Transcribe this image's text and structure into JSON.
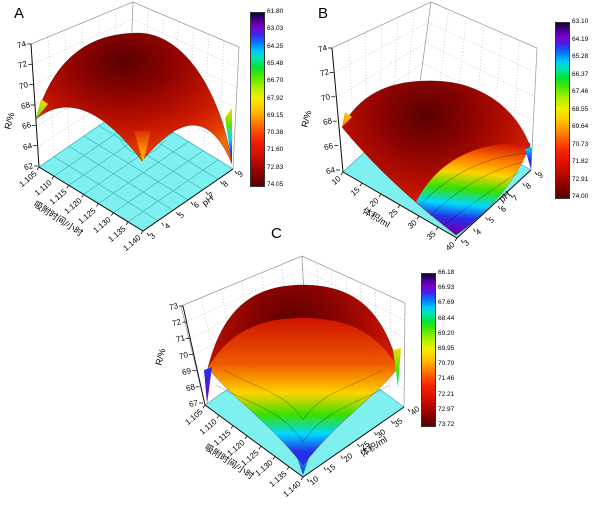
{
  "style": {
    "background": "#ffffff",
    "floor_color": "#7ff0f0",
    "surface_peak_color": "#5a0000",
    "surface_body_color": "#c41200",
    "colormap_top_to_bottom": [
      "#150030",
      "#7a00cc",
      "#2233ee",
      "#00c8ff",
      "#00e33c",
      "#9cf000",
      "#f2ef00",
      "#ffc400",
      "#ff8a00",
      "#f32000",
      "#5c0000"
    ]
  },
  "chart_data": [
    {
      "type": "surface",
      "panel": "A",
      "xlabel": "吸附时间/小时",
      "x_ticks": [
        "1.105",
        "1.110",
        "1.115",
        "1.120",
        "1.125",
        "1.130",
        "1.135",
        "1.140"
      ],
      "ylabel": "pH",
      "y_ticks": [
        "3",
        "4",
        "5",
        "6",
        "7",
        "8",
        "9"
      ],
      "zlabel": "R/%",
      "z_ticks": [
        "74",
        "72",
        "70",
        "68",
        "66",
        "64",
        "62"
      ],
      "zlim": [
        62,
        74
      ],
      "surface_description": "Dome-shaped response surface: R peaks near 74 at center (时间≈1.12 h, pH≈6) and falls toward all four corners, lowest ≈62 at the pH 9 corner; cyan base plane at z=62.",
      "colorbar": {
        "min": 61.8,
        "max": 74.05,
        "ticks": [
          "61.80",
          "63.03",
          "64.25",
          "65.48",
          "66.70",
          "67.92",
          "69.15",
          "70.38",
          "71.60",
          "72.83",
          "74.05"
        ]
      }
    },
    {
      "type": "surface",
      "panel": "B",
      "xlabel": "体积/ml",
      "x_ticks": [
        "10",
        "15",
        "20",
        "25",
        "30",
        "35",
        "40"
      ],
      "ylabel": "pH",
      "y_ticks": [
        "3",
        "4",
        "5",
        "6",
        "7",
        "8",
        "9"
      ],
      "zlabel": "R/%",
      "z_ticks": [
        "74",
        "72",
        "70",
        "68",
        "66",
        "64"
      ],
      "zlim": [
        64,
        74
      ],
      "surface_description": "Dome-shaped response surface: R peaks near 74 toward the back (体积≈20 ml, pH≈6) and descends across the front-right face through rainbow contour bands to a minimum ≈63 at the 体积=40, pH=3 corner; cyan base plane.",
      "colorbar": {
        "min": 63.1,
        "max": 74.0,
        "ticks": [
          "63.10",
          "64.19",
          "65.28",
          "66.37",
          "67.46",
          "68.55",
          "69.64",
          "70.73",
          "71.82",
          "72.91",
          "74.00"
        ]
      }
    },
    {
      "type": "surface",
      "panel": "C",
      "xlabel": "吸附时间/小时",
      "x_ticks": [
        "1.105",
        "1.110",
        "1.115",
        "1.120",
        "1.125",
        "1.130",
        "1.135",
        "1.140"
      ],
      "ylabel": "体积/ml",
      "y_ticks": [
        "10",
        "15",
        "20",
        "25",
        "30",
        "35",
        "40"
      ],
      "zlabel": "R/%",
      "z_ticks": [
        "73",
        "72",
        "71",
        "70",
        "69",
        "68",
        "67"
      ],
      "zlim": [
        67,
        73
      ],
      "surface_description": "Dome-shaped response surface: R peaks near 73.7 at center (时间≈1.12 h, 体积≈25 ml), with rainbow-banded slopes and a deep V-shaped cleft at the front corner dropping to ≈66; cyan base plane at z≈67.",
      "colorbar": {
        "min": 66.18,
        "max": 73.72,
        "ticks": [
          "66.18",
          "66.93",
          "67.69",
          "68.44",
          "69.20",
          "69.95",
          "70.70",
          "71.46",
          "72.21",
          "72.97",
          "73.72"
        ]
      }
    }
  ]
}
